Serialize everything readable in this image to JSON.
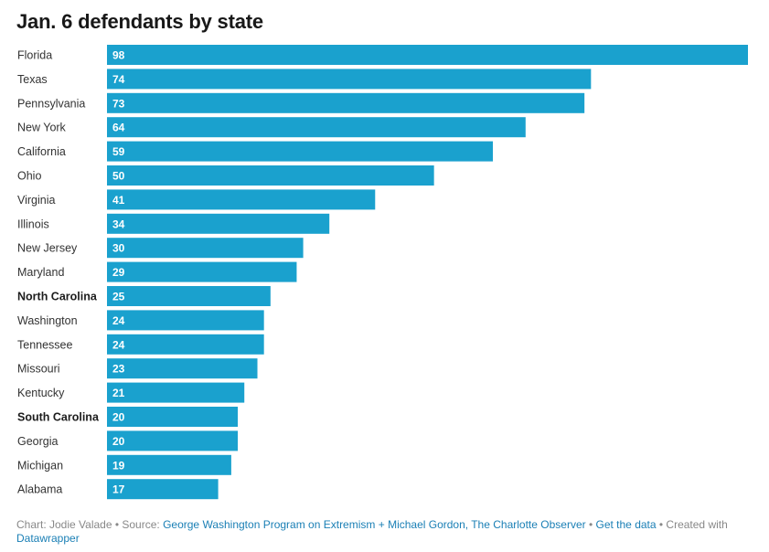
{
  "title": "Jan. 6 defendants by state",
  "chart_data": {
    "type": "bar",
    "orientation": "horizontal",
    "title": "Jan. 6 defendants by state",
    "xlabel": "",
    "ylabel": "",
    "grid": false,
    "bar_color": "#1aa1ce",
    "value_label_color": "#ffffff",
    "xlim": [
      0,
      98
    ],
    "categories": [
      "Florida",
      "Texas",
      "Pennsylvania",
      "New York",
      "California",
      "Ohio",
      "Virginia",
      "Illinois",
      "New Jersey",
      "Maryland",
      "North Carolina",
      "Washington",
      "Tennessee",
      "Missouri",
      "Kentucky",
      "South Carolina",
      "Georgia",
      "Michigan",
      "Alabama"
    ],
    "values": [
      98,
      74,
      73,
      64,
      59,
      50,
      41,
      34,
      30,
      29,
      25,
      24,
      24,
      23,
      21,
      20,
      20,
      19,
      17
    ],
    "highlighted": [
      "North Carolina",
      "South Carolina"
    ]
  },
  "footer": {
    "chart_prefix": "Chart: Jodie Valade • Source: ",
    "source_link": "George Washington Program on Extremism + Michael Gordon, The Charlotte Observer",
    "separator1": " • ",
    "get_data_link": "Get the data",
    "separator2": " • Created with ",
    "datawrapper_link": "Datawrapper"
  }
}
